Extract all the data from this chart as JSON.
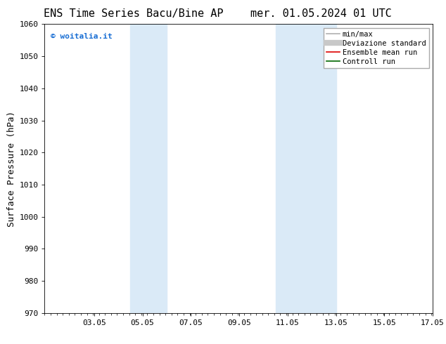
{
  "title_left": "ENS Time Series Bacu/Bine AP",
  "title_right": "mer. 01.05.2024 01 UTC",
  "ylabel": "Surface Pressure (hPa)",
  "xlim": [
    1.0,
    17.05
  ],
  "ylim": [
    970,
    1060
  ],
  "yticks": [
    970,
    980,
    990,
    1000,
    1010,
    1020,
    1030,
    1040,
    1050,
    1060
  ],
  "xticks": [
    3.05,
    5.05,
    7.05,
    9.05,
    11.05,
    13.05,
    15.05,
    17.05
  ],
  "xtick_labels": [
    "03.05",
    "05.05",
    "07.05",
    "09.05",
    "11.05",
    "13.05",
    "15.05",
    "17.05"
  ],
  "shaded_bands": [
    {
      "xmin": 4.55,
      "xmax": 6.05
    },
    {
      "xmin": 10.55,
      "xmax": 13.05
    }
  ],
  "shade_color": "#daeaf7",
  "bg_color": "#ffffff",
  "watermark_text": "© woitalia.it",
  "watermark_color": "#1a6fd4",
  "legend_entries": [
    {
      "label": "min/max",
      "color": "#b0b0b0",
      "lw": 1.2,
      "style": "solid"
    },
    {
      "label": "Deviazione standard",
      "color": "#c8c8c8",
      "lw": 6,
      "style": "solid"
    },
    {
      "label": "Ensemble mean run",
      "color": "#dd0000",
      "lw": 1.2,
      "style": "solid"
    },
    {
      "label": "Controll run",
      "color": "#006600",
      "lw": 1.2,
      "style": "solid"
    }
  ],
  "title_fontsize": 11,
  "tick_fontsize": 8,
  "ylabel_fontsize": 9,
  "legend_fontsize": 7.5
}
